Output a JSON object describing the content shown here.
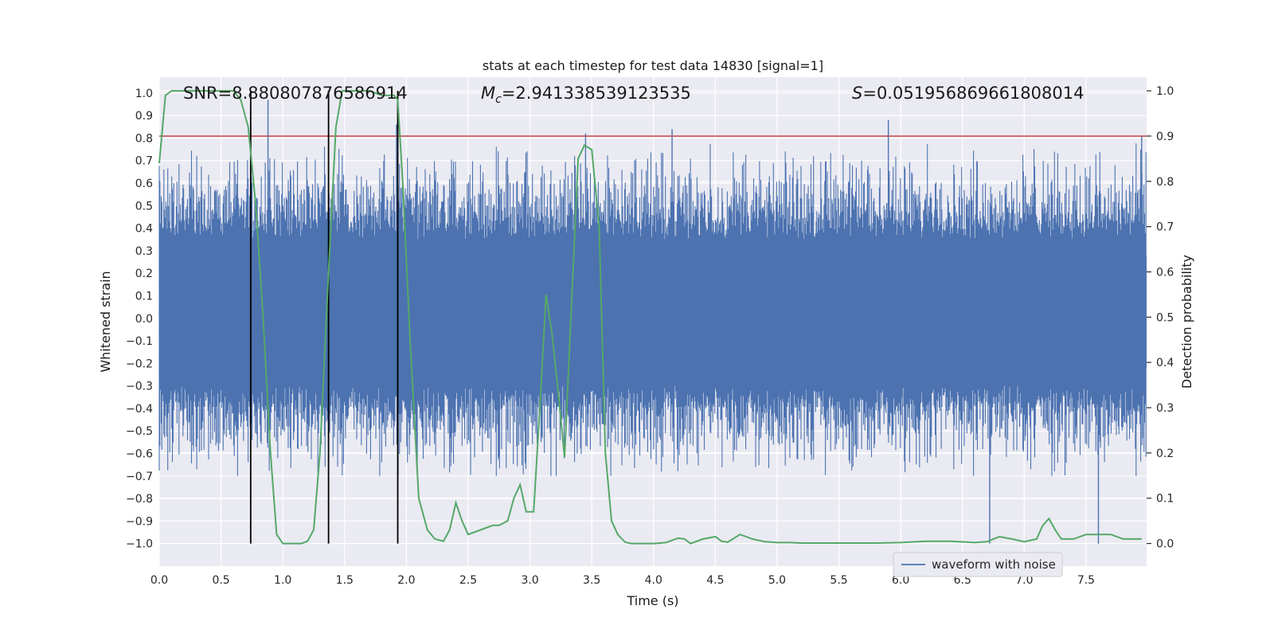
{
  "chart_data": {
    "type": "line",
    "title": "stats at each timestep for test data 14830 [signal=1]",
    "xlabel": "Time (s)",
    "ylabel": "Whitened strain",
    "y2label": "Detection probability",
    "xlim": [
      0.0,
      7.99
    ],
    "ylim": [
      -1.1,
      1.07
    ],
    "y2lim": [
      -0.05,
      1.03
    ],
    "xticks": [
      0.0,
      0.5,
      1.0,
      1.5,
      2.0,
      2.5,
      3.0,
      3.5,
      4.0,
      4.5,
      5.0,
      5.5,
      6.0,
      6.5,
      7.0,
      7.5
    ],
    "xtick_labels": [
      "0.0",
      "0.5",
      "1.0",
      "1.5",
      "2.0",
      "2.5",
      "3.0",
      "3.5",
      "4.0",
      "4.5",
      "5.0",
      "5.5",
      "6.0",
      "6.5",
      "7.0",
      "7.5"
    ],
    "yticks": [
      1.0,
      0.9,
      0.8,
      0.7,
      0.6,
      0.5,
      0.4,
      0.3,
      0.2,
      0.1,
      0.0,
      -0.1,
      -0.2,
      -0.3,
      -0.4,
      -0.5,
      -0.6,
      -0.7,
      -0.8,
      -0.9,
      -1.0
    ],
    "ytick_labels": [
      "1.0",
      "0.9",
      "0.8",
      "0.7",
      "0.6",
      "0.5",
      "0.4",
      "0.3",
      "0.2",
      "0.1",
      "0.0",
      "−0.1",
      "−0.2",
      "−0.3",
      "−0.4",
      "−0.5",
      "−0.6",
      "−0.7",
      "−0.8",
      "−0.9",
      "−1.0"
    ],
    "y2ticks": [
      1.0,
      0.9,
      0.8,
      0.7,
      0.6,
      0.5,
      0.4,
      0.3,
      0.2,
      0.1,
      0.0
    ],
    "y2tick_labels": [
      "1.0",
      "0.9",
      "0.8",
      "0.7",
      "0.6",
      "0.5",
      "0.4",
      "0.3",
      "0.2",
      "0.1",
      "0.0"
    ],
    "grid": true,
    "legend_position": "lower-right",
    "annotations": {
      "snr": "SNR=8.880807876586914",
      "mc": "=2.941338539123535",
      "mc_symbol": "M",
      "mc_sub": "c",
      "s": "=0.051956869661808014",
      "s_symbol": "S"
    },
    "threshold": 0.9,
    "event_markers_x": [
      0.74,
      1.37,
      1.93
    ],
    "series": [
      {
        "name": "waveform with noise",
        "color": "#4c72b0",
        "kind": "noise-envelope",
        "core": [
          -0.22,
          0.28
        ],
        "typical_amplitude": 0.45,
        "spikes_x": [
          0.88,
          1.92,
          3.45,
          4.15,
          5.9,
          6.72,
          7.6,
          7.95
        ],
        "spikes_y": [
          0.97,
          0.86,
          0.82,
          0.84,
          0.88,
          -1.0,
          -1.0,
          0.81
        ]
      },
      {
        "name": "detection probability",
        "color": "#55a868",
        "x": [
          0.0,
          0.05,
          0.1,
          0.2,
          0.3,
          0.4,
          0.5,
          0.6,
          0.66,
          0.72,
          0.78,
          0.84,
          0.9,
          0.95,
          1.0,
          1.05,
          1.15,
          1.2,
          1.25,
          1.3,
          1.37,
          1.43,
          1.48,
          1.6,
          1.7,
          1.8,
          1.9,
          1.93,
          1.97,
          2.03,
          2.1,
          2.17,
          2.23,
          2.3,
          2.35,
          2.4,
          2.45,
          2.5,
          2.6,
          2.7,
          2.75,
          2.82,
          2.87,
          2.92,
          2.97,
          3.03,
          3.08,
          3.13,
          3.18,
          3.23,
          3.28,
          3.34,
          3.39,
          3.44,
          3.5,
          3.56,
          3.61,
          3.66,
          3.71,
          3.77,
          3.82,
          3.9,
          4.0,
          4.1,
          4.2,
          4.25,
          4.3,
          4.4,
          4.5,
          4.55,
          4.6,
          4.7,
          4.8,
          4.9,
          5.0,
          5.1,
          5.2,
          5.4,
          5.6,
          5.8,
          6.0,
          6.2,
          6.4,
          6.6,
          6.7,
          6.75,
          6.8,
          6.9,
          7.0,
          7.1,
          7.15,
          7.2,
          7.25,
          7.3,
          7.35,
          7.4,
          7.5,
          7.6,
          7.7,
          7.8,
          7.9,
          7.95
        ],
        "values": [
          0.84,
          0.99,
          1.0,
          1.0,
          1.0,
          1.0,
          1.0,
          1.0,
          0.98,
          0.92,
          0.75,
          0.5,
          0.2,
          0.02,
          0.0,
          0.0,
          0.0,
          0.005,
          0.03,
          0.2,
          0.6,
          0.92,
          1.0,
          1.0,
          1.0,
          0.99,
          0.99,
          0.98,
          0.8,
          0.45,
          0.1,
          0.03,
          0.01,
          0.005,
          0.03,
          0.09,
          0.05,
          0.02,
          0.03,
          0.04,
          0.04,
          0.05,
          0.1,
          0.13,
          0.07,
          0.07,
          0.3,
          0.55,
          0.46,
          0.33,
          0.19,
          0.55,
          0.85,
          0.88,
          0.87,
          0.7,
          0.2,
          0.05,
          0.02,
          0.003,
          0.0,
          0.0,
          0.0,
          0.002,
          0.012,
          0.01,
          0.0,
          0.01,
          0.015,
          0.005,
          0.003,
          0.02,
          0.01,
          0.004,
          0.002,
          0.002,
          0.001,
          0.001,
          0.001,
          0.001,
          0.002,
          0.005,
          0.005,
          0.002,
          0.004,
          0.01,
          0.015,
          0.01,
          0.004,
          0.01,
          0.04,
          0.055,
          0.03,
          0.01,
          0.01,
          0.01,
          0.02,
          0.02,
          0.02,
          0.01,
          0.01,
          0.01
        ]
      }
    ]
  }
}
